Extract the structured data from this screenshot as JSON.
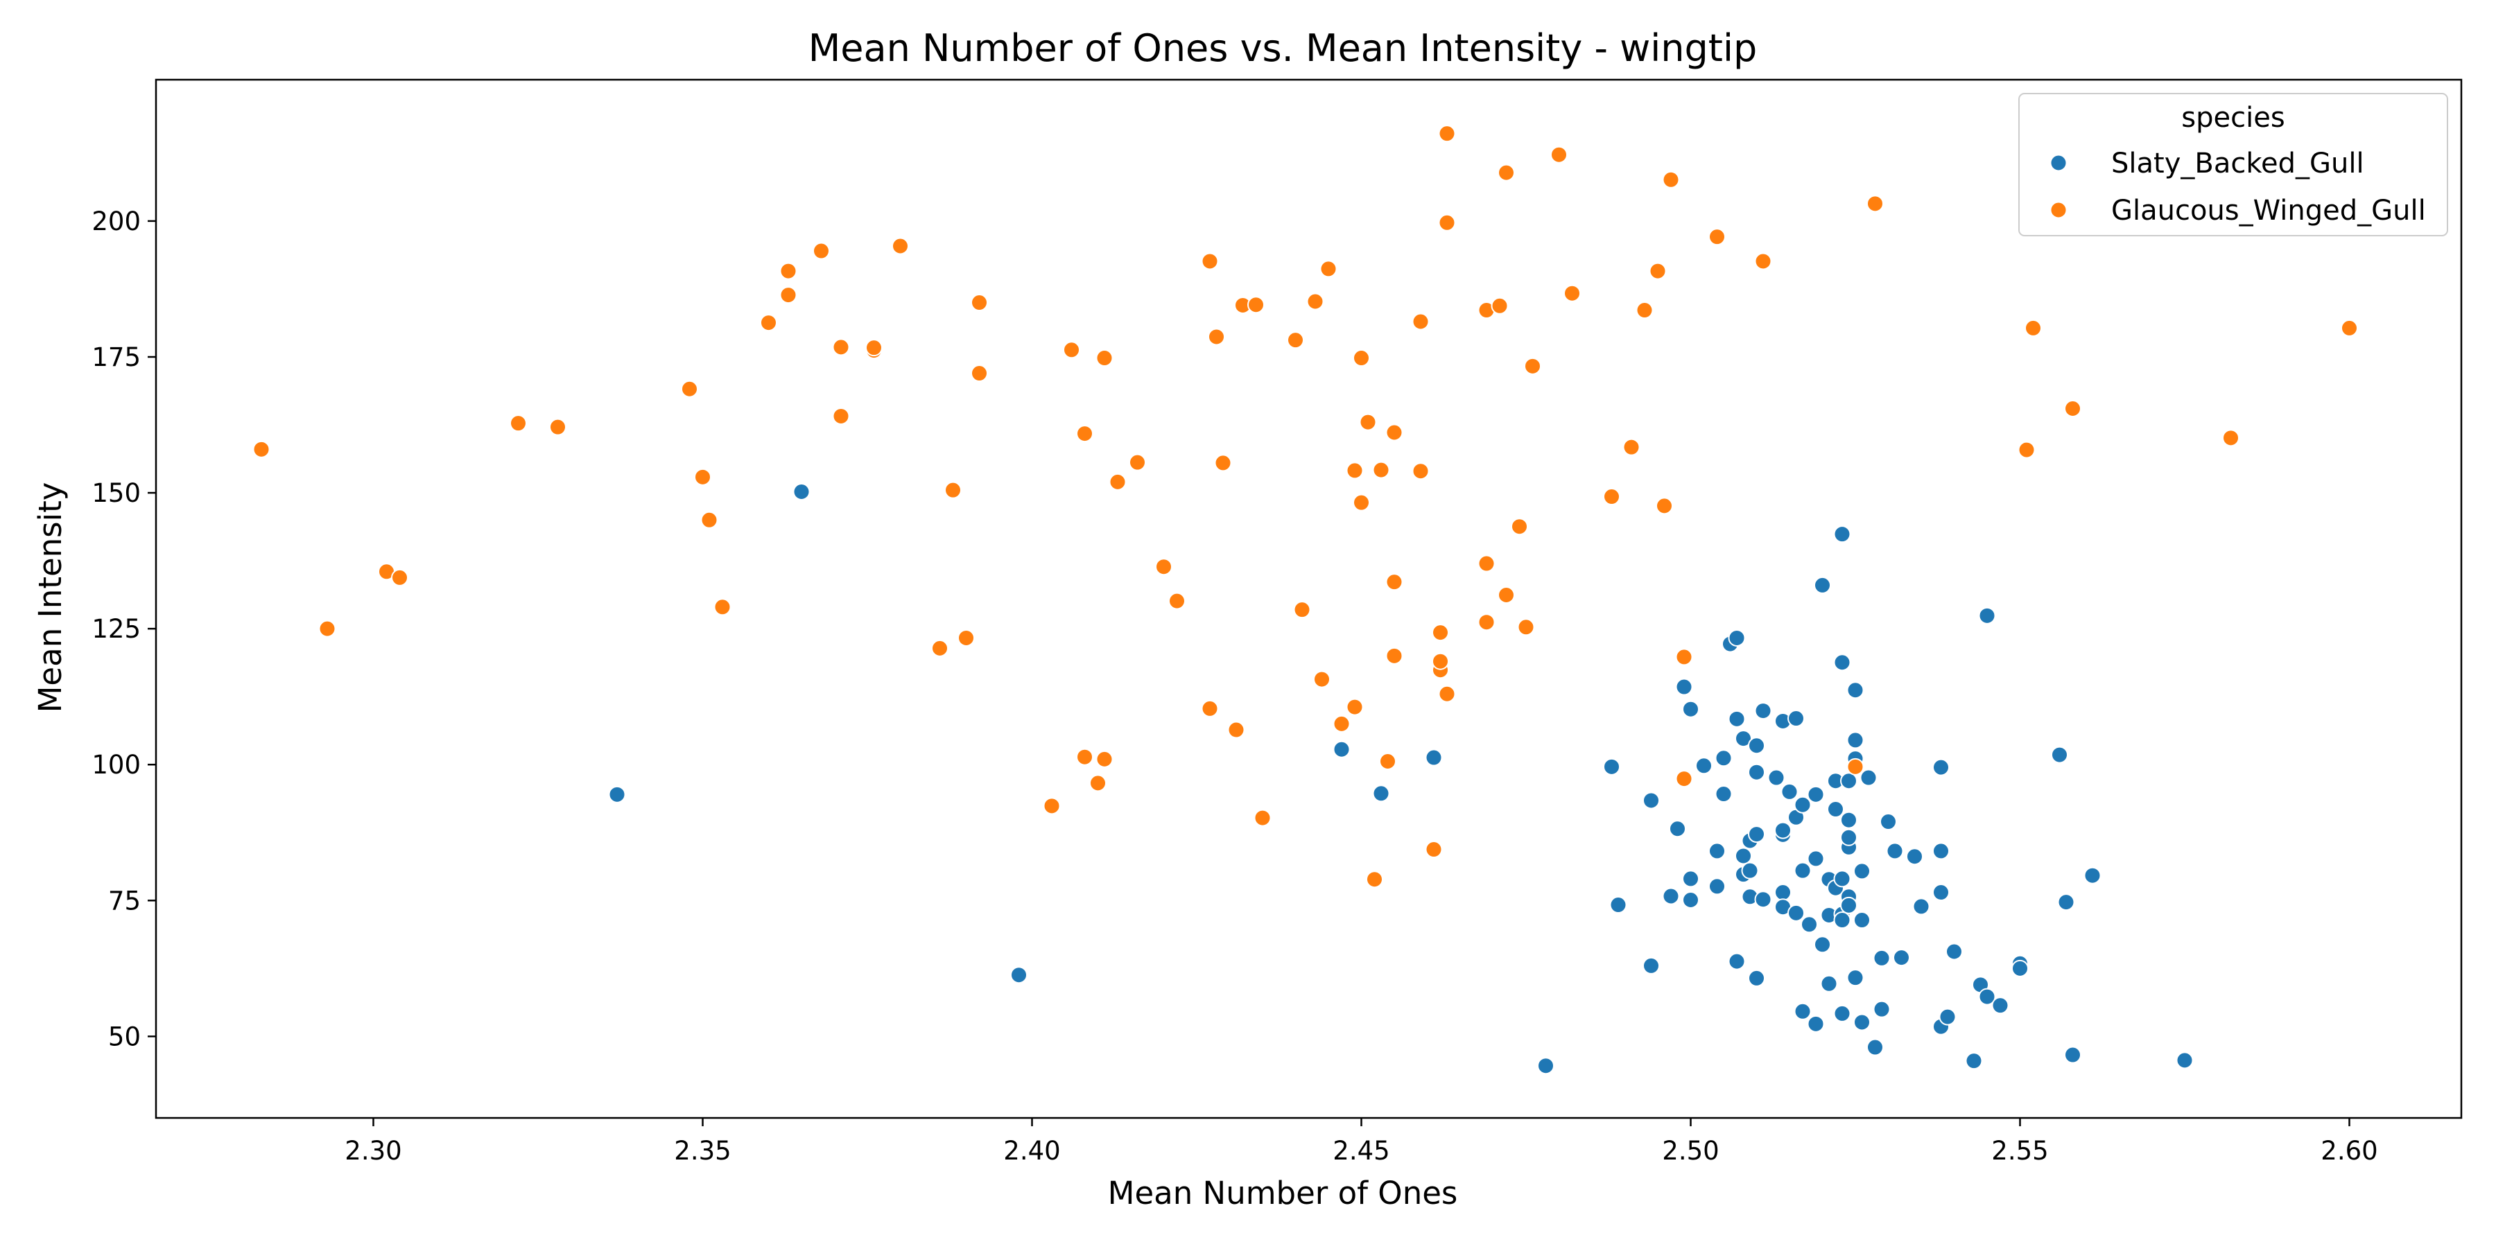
{
  "chart_data": {
    "type": "scatter",
    "title": "Mean Number of Ones vs. Mean Intensity - wingtip",
    "xlabel": "Mean Number of Ones",
    "ylabel": "Mean Intensity",
    "xlim": [
      2.267,
      2.617
    ],
    "ylim": [
      35,
      226
    ],
    "x_ticks": [
      2.3,
      2.35,
      2.4,
      2.45,
      2.5,
      2.55,
      2.6
    ],
    "x_tick_labels": [
      "2.30",
      "2.35",
      "2.40",
      "2.45",
      "2.50",
      "2.55",
      "2.60"
    ],
    "y_ticks": [
      50,
      75,
      100,
      125,
      150,
      175,
      200
    ],
    "y_tick_labels": [
      "50",
      "75",
      "100",
      "125",
      "150",
      "175",
      "200"
    ],
    "grid": false,
    "legend": {
      "title": "species",
      "placement": "top-right"
    },
    "series": [
      {
        "name": "Slaty_Backed_Gull",
        "color": "#1f77b4",
        "points": [
          [
            2.337,
            94.5
          ],
          [
            2.365,
            150.2
          ],
          [
            2.398,
            61.3
          ],
          [
            2.447,
            102.8
          ],
          [
            2.453,
            94.7
          ],
          [
            2.461,
            101.3
          ],
          [
            2.478,
            44.6
          ],
          [
            2.488,
            99.6
          ],
          [
            2.489,
            74.2
          ],
          [
            2.494,
            93.4
          ],
          [
            2.494,
            63.0
          ],
          [
            2.497,
            75.8
          ],
          [
            2.498,
            88.2
          ],
          [
            2.499,
            114.3
          ],
          [
            2.5,
            110.2
          ],
          [
            2.5,
            79.0
          ],
          [
            2.5,
            75.1
          ],
          [
            2.502,
            99.8
          ],
          [
            2.504,
            84.1
          ],
          [
            2.504,
            77.6
          ],
          [
            2.505,
            101.2
          ],
          [
            2.505,
            94.6
          ],
          [
            2.506,
            122.2
          ],
          [
            2.507,
            108.4
          ],
          [
            2.507,
            63.8
          ],
          [
            2.507,
            123.3
          ],
          [
            2.508,
            104.8
          ],
          [
            2.508,
            83.2
          ],
          [
            2.508,
            79.8
          ],
          [
            2.509,
            86.0
          ],
          [
            2.509,
            75.7
          ],
          [
            2.509,
            80.5
          ],
          [
            2.51,
            98.6
          ],
          [
            2.51,
            103.5
          ],
          [
            2.51,
            87.2
          ],
          [
            2.51,
            60.7
          ],
          [
            2.511,
            75.2
          ],
          [
            2.511,
            109.9
          ],
          [
            2.513,
            97.6
          ],
          [
            2.514,
            108.0
          ],
          [
            2.514,
            87.1
          ],
          [
            2.514,
            87.9
          ],
          [
            2.514,
            76.5
          ],
          [
            2.514,
            73.8
          ],
          [
            2.515,
            95.0
          ],
          [
            2.516,
            108.5
          ],
          [
            2.516,
            90.3
          ],
          [
            2.516,
            72.7
          ],
          [
            2.517,
            92.6
          ],
          [
            2.517,
            80.5
          ],
          [
            2.517,
            54.6
          ],
          [
            2.518,
            70.6
          ],
          [
            2.519,
            82.7
          ],
          [
            2.519,
            52.3
          ],
          [
            2.519,
            94.5
          ],
          [
            2.52,
            133.0
          ],
          [
            2.52,
            66.9
          ],
          [
            2.521,
            72.3
          ],
          [
            2.521,
            59.7
          ],
          [
            2.521,
            78.9
          ],
          [
            2.522,
            97.0
          ],
          [
            2.522,
            91.8
          ],
          [
            2.522,
            77.3
          ],
          [
            2.523,
            79.0
          ],
          [
            2.523,
            72.5
          ],
          [
            2.523,
            71.4
          ],
          [
            2.523,
            54.2
          ],
          [
            2.523,
            118.8
          ],
          [
            2.523,
            142.4
          ],
          [
            2.524,
            84.8
          ],
          [
            2.524,
            75.7
          ],
          [
            2.524,
            74.1
          ],
          [
            2.524,
            97.0
          ],
          [
            2.524,
            89.8
          ],
          [
            2.524,
            86.6
          ],
          [
            2.525,
            60.8
          ],
          [
            2.525,
            104.5
          ],
          [
            2.525,
            101.1
          ],
          [
            2.525,
            113.7
          ],
          [
            2.526,
            80.4
          ],
          [
            2.526,
            71.4
          ],
          [
            2.526,
            52.6
          ],
          [
            2.527,
            97.6
          ],
          [
            2.528,
            48.0
          ],
          [
            2.529,
            55.0
          ],
          [
            2.529,
            64.4
          ],
          [
            2.53,
            89.5
          ],
          [
            2.531,
            84.1
          ],
          [
            2.532,
            64.5
          ],
          [
            2.534,
            83.1
          ],
          [
            2.535,
            73.9
          ],
          [
            2.538,
            84.1
          ],
          [
            2.538,
            76.5
          ],
          [
            2.538,
            51.8
          ],
          [
            2.538,
            99.5
          ],
          [
            2.539,
            53.6
          ],
          [
            2.54,
            65.6
          ],
          [
            2.543,
            45.5
          ],
          [
            2.544,
            59.5
          ],
          [
            2.545,
            127.4
          ],
          [
            2.545,
            57.3
          ],
          [
            2.547,
            55.7
          ],
          [
            2.55,
            63.4
          ],
          [
            2.55,
            62.5
          ],
          [
            2.556,
            101.8
          ],
          [
            2.557,
            74.7
          ],
          [
            2.558,
            46.6
          ],
          [
            2.561,
            79.6
          ],
          [
            2.575,
            45.6
          ]
        ]
      },
      {
        "name": "Glaucous_Winged_Gull",
        "color": "#ff7f0e",
        "points": [
          [
            2.283,
            158.0
          ],
          [
            2.293,
            125.0
          ],
          [
            2.302,
            135.5
          ],
          [
            2.304,
            134.4
          ],
          [
            2.322,
            162.8
          ],
          [
            2.328,
            162.1
          ],
          [
            2.348,
            169.1
          ],
          [
            2.35,
            152.9
          ],
          [
            2.351,
            145.0
          ],
          [
            2.353,
            129.0
          ],
          [
            2.36,
            181.3
          ],
          [
            2.363,
            186.4
          ],
          [
            2.363,
            190.8
          ],
          [
            2.368,
            194.5
          ],
          [
            2.371,
            176.8
          ],
          [
            2.371,
            164.1
          ],
          [
            2.376,
            176.2
          ],
          [
            2.376,
            176.7
          ],
          [
            2.38,
            195.4
          ],
          [
            2.386,
            121.4
          ],
          [
            2.388,
            150.5
          ],
          [
            2.39,
            123.3
          ],
          [
            2.392,
            172.0
          ],
          [
            2.392,
            185.0
          ],
          [
            2.403,
            92.4
          ],
          [
            2.406,
            176.3
          ],
          [
            2.408,
            160.9
          ],
          [
            2.408,
            101.4
          ],
          [
            2.41,
            96.6
          ],
          [
            2.411,
            174.8
          ],
          [
            2.411,
            101.0
          ],
          [
            2.413,
            152.0
          ],
          [
            2.416,
            155.6
          ],
          [
            2.42,
            136.4
          ],
          [
            2.422,
            130.1
          ],
          [
            2.427,
            192.6
          ],
          [
            2.427,
            110.3
          ],
          [
            2.428,
            178.7
          ],
          [
            2.429,
            155.5
          ],
          [
            2.431,
            106.4
          ],
          [
            2.432,
            184.5
          ],
          [
            2.434,
            184.6
          ],
          [
            2.435,
            90.2
          ],
          [
            2.44,
            178.1
          ],
          [
            2.441,
            128.5
          ],
          [
            2.443,
            185.2
          ],
          [
            2.444,
            115.7
          ],
          [
            2.445,
            191.2
          ],
          [
            2.447,
            107.5
          ],
          [
            2.449,
            110.6
          ],
          [
            2.449,
            154.1
          ],
          [
            2.45,
            148.2
          ],
          [
            2.45,
            174.8
          ],
          [
            2.451,
            163.0
          ],
          [
            2.452,
            78.9
          ],
          [
            2.453,
            154.2
          ],
          [
            2.454,
            100.6
          ],
          [
            2.455,
            161.1
          ],
          [
            2.455,
            133.6
          ],
          [
            2.455,
            120.0
          ],
          [
            2.459,
            181.5
          ],
          [
            2.459,
            154.0
          ],
          [
            2.461,
            84.4
          ],
          [
            2.462,
            124.3
          ],
          [
            2.462,
            117.4
          ],
          [
            2.462,
            119.0
          ],
          [
            2.463,
            113.0
          ],
          [
            2.463,
            216.1
          ],
          [
            2.463,
            199.7
          ],
          [
            2.469,
            137.0
          ],
          [
            2.469,
            126.2
          ],
          [
            2.469,
            183.6
          ],
          [
            2.471,
            184.4
          ],
          [
            2.472,
            131.2
          ],
          [
            2.472,
            208.9
          ],
          [
            2.474,
            143.8
          ],
          [
            2.475,
            125.3
          ],
          [
            2.476,
            173.3
          ],
          [
            2.48,
            212.2
          ],
          [
            2.482,
            186.7
          ],
          [
            2.488,
            149.3
          ],
          [
            2.491,
            158.4
          ],
          [
            2.493,
            183.6
          ],
          [
            2.495,
            190.8
          ],
          [
            2.496,
            147.6
          ],
          [
            2.497,
            207.6
          ],
          [
            2.499,
            119.8
          ],
          [
            2.499,
            97.4
          ],
          [
            2.504,
            197.1
          ],
          [
            2.511,
            192.6
          ],
          [
            2.525,
            99.6
          ],
          [
            2.528,
            203.2
          ],
          [
            2.551,
            157.9
          ],
          [
            2.552,
            180.3
          ],
          [
            2.558,
            165.5
          ],
          [
            2.582,
            160.1
          ],
          [
            2.6,
            180.3
          ]
        ]
      }
    ]
  }
}
